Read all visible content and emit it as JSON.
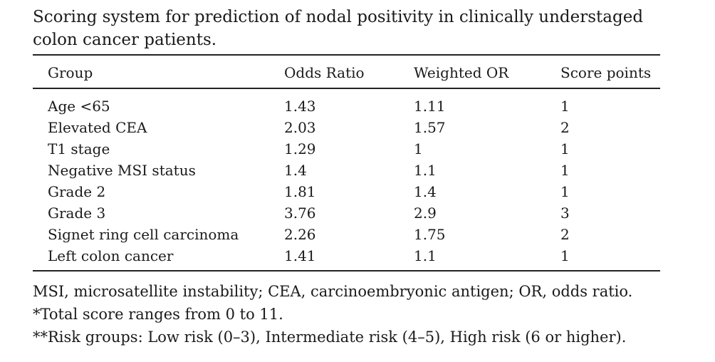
{
  "title": "Scoring system for prediction of nodal positivity in clinically understaged colon cancer patients.",
  "table": {
    "headers": [
      "Group",
      "Odds Ratio",
      "Weighted OR",
      "Score points"
    ],
    "rows": [
      [
        "Age <65",
        "1.43",
        "1.11",
        "1"
      ],
      [
        "Elevated CEA",
        "2.03",
        "1.57",
        "2"
      ],
      [
        "T1 stage",
        "1.29",
        "1",
        "1"
      ],
      [
        "Negative MSI status",
        "1.4",
        "1.1",
        "1"
      ],
      [
        "Grade 2",
        "1.81",
        "1.4",
        "1"
      ],
      [
        "Grade 3",
        "3.76",
        "2.9",
        "3"
      ],
      [
        "Signet ring cell carcinoma",
        "2.26",
        "1.75",
        "2"
      ],
      [
        "Left colon cancer",
        "1.41",
        "1.1",
        "1"
      ]
    ]
  },
  "footnotes": [
    "MSI, microsatellite instability; CEA, carcinoembryonic antigen; OR, odds ratio.",
    "*Total score ranges from 0 to 11.",
    "**Risk groups: Low risk (0–3), Intermediate risk (4–5), High risk (6 or higher)."
  ]
}
